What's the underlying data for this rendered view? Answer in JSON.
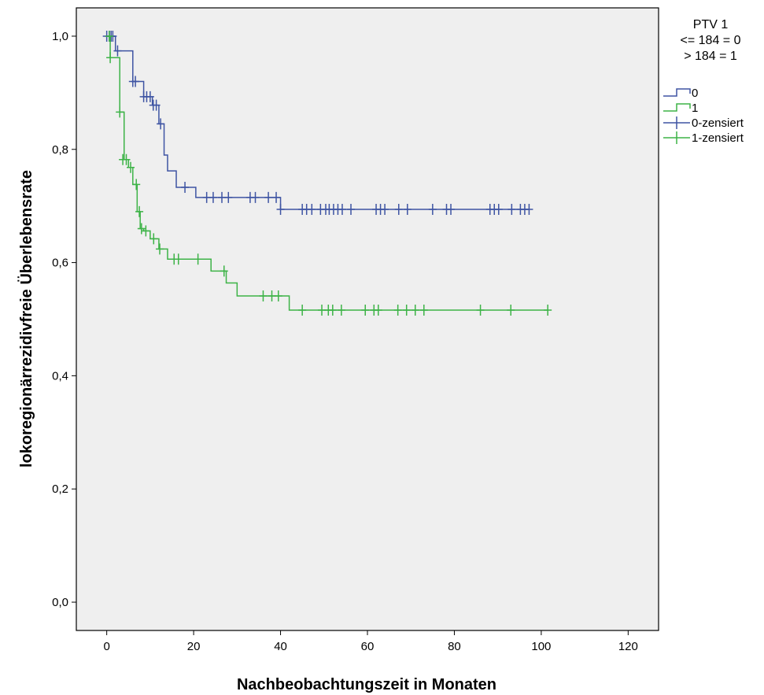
{
  "chart_data": {
    "type": "line",
    "subtype": "kaplan-meier",
    "xlabel": "Nachbeobachtungszeit in Monaten",
    "ylabel": "lokoregionärrezidivfreie Überlebensrate",
    "xlim": [
      -7,
      127
    ],
    "ylim": [
      -0.05,
      1.05
    ],
    "x_ticks": [
      0,
      20,
      40,
      60,
      80,
      100,
      120
    ],
    "y_ticks": [
      0.0,
      0.2,
      0.4,
      0.6,
      0.8,
      1.0
    ],
    "x_tick_labels": [
      "0",
      "20",
      "40",
      "60",
      "80",
      "100",
      "120"
    ],
    "y_tick_labels": [
      "0,0",
      "0,2",
      "0,4",
      "0,6",
      "0,8",
      "1,0"
    ],
    "background_color": "#efefef",
    "grid": false,
    "legend": {
      "position": "top-right",
      "title_lines": [
        "PTV 1",
        "<= 184 = 0",
        "> 184 = 1"
      ],
      "entries": [
        {
          "label": "0",
          "kind": "step",
          "series": 0
        },
        {
          "label": "1",
          "kind": "step",
          "series": 1
        },
        {
          "label": "0-zensiert",
          "kind": "censor",
          "series": 0
        },
        {
          "label": "1-zensiert",
          "kind": "censor",
          "series": 1
        }
      ]
    },
    "series": [
      {
        "name": "0",
        "color": "#3e54a3",
        "steps": [
          [
            0,
            1.0
          ],
          [
            2,
            0.974
          ],
          [
            6,
            0.92
          ],
          [
            8.5,
            0.893
          ],
          [
            10.5,
            0.878
          ],
          [
            12,
            0.845
          ],
          [
            13.2,
            0.79
          ],
          [
            14,
            0.762
          ],
          [
            16,
            0.733
          ],
          [
            20.5,
            0.715
          ],
          [
            40,
            0.694
          ],
          [
            97,
            0.694
          ]
        ],
        "censored": [
          [
            0,
            1.0
          ],
          [
            0.6,
            1.0
          ],
          [
            1,
            1.0
          ],
          [
            1.4,
            1.0
          ],
          [
            2.5,
            0.974
          ],
          [
            6,
            0.92
          ],
          [
            6.6,
            0.92
          ],
          [
            8.5,
            0.893
          ],
          [
            9.2,
            0.893
          ],
          [
            10,
            0.893
          ],
          [
            10.7,
            0.878
          ],
          [
            11.4,
            0.878
          ],
          [
            12.4,
            0.845
          ],
          [
            18,
            0.733
          ],
          [
            23,
            0.715
          ],
          [
            24.5,
            0.715
          ],
          [
            26.5,
            0.715
          ],
          [
            28,
            0.715
          ],
          [
            33,
            0.715
          ],
          [
            34.2,
            0.715
          ],
          [
            37.2,
            0.715
          ],
          [
            39,
            0.715
          ],
          [
            40,
            0.694
          ],
          [
            45,
            0.694
          ],
          [
            46,
            0.694
          ],
          [
            47.2,
            0.694
          ],
          [
            49.2,
            0.694
          ],
          [
            50.4,
            0.694
          ],
          [
            51.2,
            0.694
          ],
          [
            52.2,
            0.694
          ],
          [
            53.2,
            0.694
          ],
          [
            54.2,
            0.694
          ],
          [
            56.2,
            0.694
          ],
          [
            62,
            0.694
          ],
          [
            63,
            0.694
          ],
          [
            64,
            0.694
          ],
          [
            67.2,
            0.694
          ],
          [
            69.2,
            0.694
          ],
          [
            75,
            0.694
          ],
          [
            78.2,
            0.694
          ],
          [
            79.2,
            0.694
          ],
          [
            88.2,
            0.694
          ],
          [
            89.2,
            0.694
          ],
          [
            90.2,
            0.694
          ],
          [
            93.2,
            0.694
          ],
          [
            95.2,
            0.694
          ],
          [
            96.2,
            0.694
          ],
          [
            97.2,
            0.694
          ]
        ]
      },
      {
        "name": "1",
        "color": "#3db347",
        "steps": [
          [
            0,
            1.0
          ],
          [
            0.8,
            0.962
          ],
          [
            3,
            0.866
          ],
          [
            4,
            0.782
          ],
          [
            5,
            0.768
          ],
          [
            6,
            0.738
          ],
          [
            7,
            0.69
          ],
          [
            7.7,
            0.66
          ],
          [
            8.5,
            0.656
          ],
          [
            10,
            0.642
          ],
          [
            12,
            0.624
          ],
          [
            14,
            0.606
          ],
          [
            24,
            0.585
          ],
          [
            27.5,
            0.564
          ],
          [
            30,
            0.541
          ],
          [
            42,
            0.516
          ],
          [
            101.5,
            0.516
          ]
        ],
        "censored": [
          [
            0.6,
            1.0
          ],
          [
            0.8,
            0.962
          ],
          [
            3,
            0.866
          ],
          [
            3.7,
            0.782
          ],
          [
            4.5,
            0.782
          ],
          [
            5.5,
            0.768
          ],
          [
            6.8,
            0.738
          ],
          [
            7.5,
            0.69
          ],
          [
            8,
            0.66
          ],
          [
            9,
            0.656
          ],
          [
            10.8,
            0.642
          ],
          [
            12.2,
            0.624
          ],
          [
            15.5,
            0.606
          ],
          [
            16.5,
            0.606
          ],
          [
            21,
            0.606
          ],
          [
            27,
            0.585
          ],
          [
            36,
            0.541
          ],
          [
            38,
            0.541
          ],
          [
            39.5,
            0.541
          ],
          [
            45,
            0.516
          ],
          [
            49.5,
            0.516
          ],
          [
            51,
            0.516
          ],
          [
            52,
            0.516
          ],
          [
            54,
            0.516
          ],
          [
            59.5,
            0.516
          ],
          [
            61.5,
            0.516
          ],
          [
            62.5,
            0.516
          ],
          [
            67,
            0.516
          ],
          [
            69,
            0.516
          ],
          [
            71,
            0.516
          ],
          [
            73,
            0.516
          ],
          [
            86,
            0.516
          ],
          [
            93,
            0.516
          ],
          [
            101.5,
            0.516
          ]
        ]
      }
    ]
  }
}
